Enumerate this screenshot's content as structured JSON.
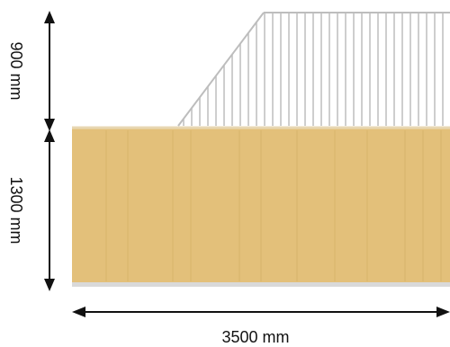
{
  "dimensions": {
    "upper_height": "900 mm",
    "lower_height": "1300 mm",
    "width": "3500 mm"
  },
  "colors": {
    "panel_fill": "#E3C07A",
    "panel_stripe": "#D3AE66",
    "panel_edge": "#E8D7B2",
    "rail": "#BDBDBD",
    "arrow": "#111111"
  }
}
